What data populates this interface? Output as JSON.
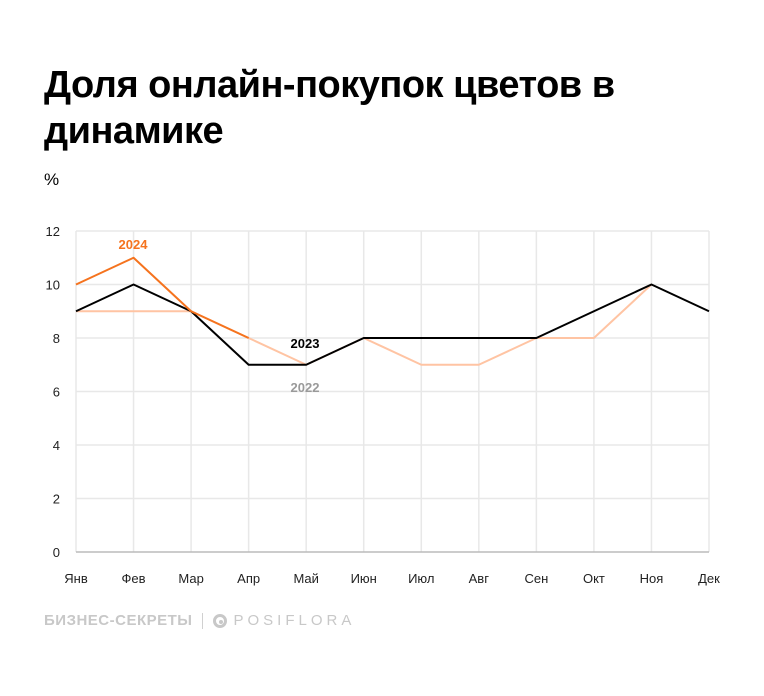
{
  "title": "Доля онлайн-покупок цветов в динамике",
  "chart_data": {
    "type": "line",
    "title": "Доля онлайн-покупок цветов в динамике",
    "ylabel": "%",
    "categories": [
      "Янв",
      "Фев",
      "Мар",
      "Апр",
      "Май",
      "Июн",
      "Июл",
      "Авг",
      "Сен",
      "Окт",
      "Ноя",
      "Дек"
    ],
    "ylim": [
      0,
      12
    ],
    "yticks": [
      0,
      2,
      4,
      6,
      8,
      10,
      12
    ],
    "grid": true,
    "series": [
      {
        "name": "2022",
        "color": "#ffc4a3",
        "label_color": "#9a9a9a",
        "values": [
          9,
          9,
          9,
          8,
          7,
          8,
          7,
          7,
          8,
          8,
          10,
          null
        ]
      },
      {
        "name": "2023",
        "color": "#000000",
        "label_color": "#000000",
        "values": [
          9,
          10,
          9,
          7,
          7,
          8,
          8,
          8,
          8,
          9,
          10,
          9
        ]
      },
      {
        "name": "2024",
        "color": "#f5731e",
        "label_color": "#f5731e",
        "values": [
          10,
          11,
          9,
          8,
          null,
          null,
          null,
          null,
          null,
          null,
          null,
          null
        ]
      }
    ]
  },
  "footer": {
    "brand1": "БИЗНЕС-СЕКРЕТЫ",
    "brand2": "POSIFLORA",
    "brand2_icon": "posiflora-logo-icon"
  }
}
